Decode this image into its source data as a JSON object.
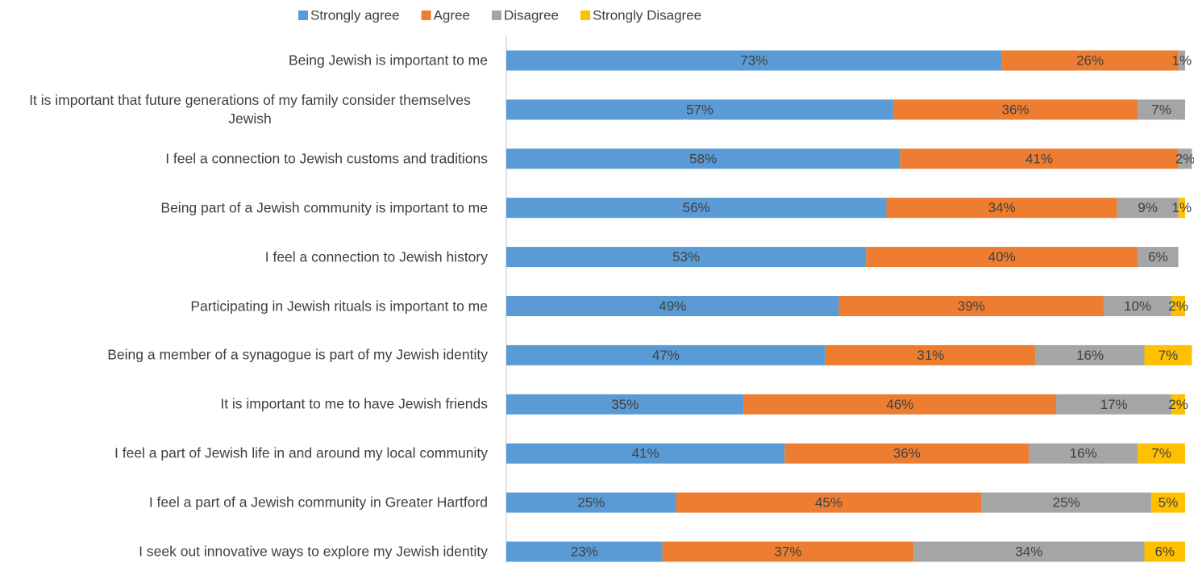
{
  "chart_data": {
    "type": "stacked_barh",
    "categories": [
      "Being Jewish is important to me",
      "It is important that future generations of my family consider themselves Jewish",
      "I feel a connection to Jewish customs and traditions",
      "Being part of a Jewish community is important to me",
      "I feel a connection to Jewish history",
      "Participating in Jewish rituals is important to me",
      "Being a member of a synagogue is part of my Jewish identity",
      "It is important to me to have Jewish friends",
      "I feel a part of Jewish life in and around my local community",
      "I feel a part of a Jewish community in Greater Hartford",
      "I seek out innovative ways to explore my Jewish identity"
    ],
    "series": [
      {
        "name": "Strongly agree",
        "color": "#5b9bd5",
        "values": [
          73,
          57,
          58,
          56,
          53,
          49,
          47,
          35,
          41,
          25,
          23
        ],
        "value_labels": [
          "73%",
          "57%",
          "58%",
          "56%",
          "53%",
          "49%",
          "47%",
          "35%",
          "41%",
          "25%",
          "23%"
        ]
      },
      {
        "name": "Agree",
        "color": "#ed7d31",
        "values": [
          26,
          36,
          41,
          34,
          40,
          39,
          31,
          46,
          36,
          45,
          37
        ],
        "value_labels": [
          "26%",
          "36%",
          "41%",
          "34%",
          "40%",
          "39%",
          "31%",
          "46%",
          "36%",
          "45%",
          "37%"
        ]
      },
      {
        "name": "Disagree",
        "color": "#a5a5a5",
        "values": [
          1,
          7,
          2,
          9,
          6,
          10,
          16,
          17,
          16,
          25,
          34
        ],
        "value_labels": [
          "1%",
          "7%",
          "2%",
          "9%",
          "6%",
          "10%",
          "16%",
          "17%",
          "16%",
          "25%",
          "34%"
        ]
      },
      {
        "name": "Strongly Disagree",
        "color": "#ffc000",
        "values": [
          null,
          null,
          null,
          1,
          null,
          2,
          7,
          2,
          7,
          5,
          6
        ],
        "value_labels": [
          null,
          null,
          null,
          "1%",
          null,
          "2%",
          "7%",
          "2%",
          "7%",
          "5%",
          "6%"
        ]
      }
    ],
    "xlim": [
      0,
      100
    ],
    "legend": "top"
  }
}
